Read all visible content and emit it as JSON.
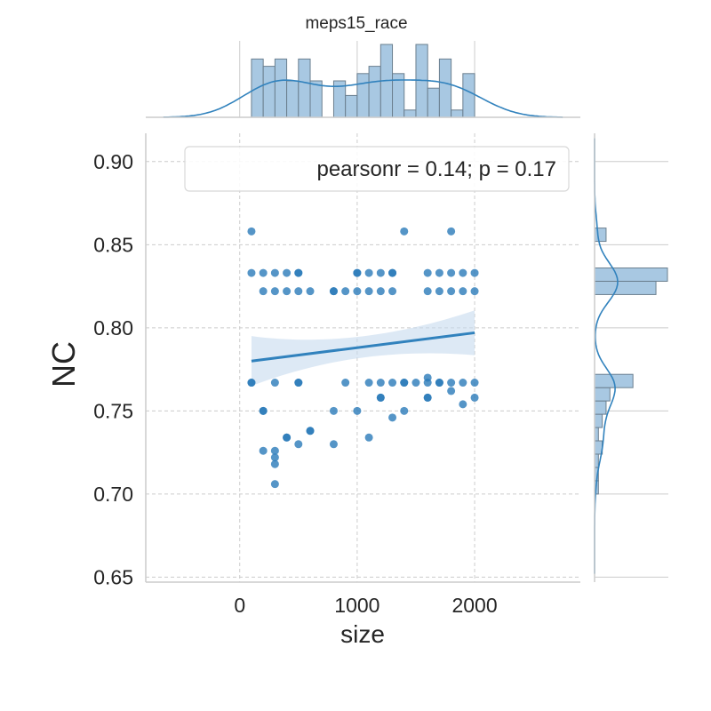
{
  "chart_data": {
    "type": "scatter",
    "title": "meps15_race",
    "xlabel": "size",
    "ylabel": "NC",
    "xlim": [
      -800,
      2900
    ],
    "ylim": [
      0.647,
      0.917
    ],
    "x_ticks": [
      0,
      1000,
      2000
    ],
    "x_tick_labels": [
      "0",
      "1000",
      "2000"
    ],
    "y_ticks": [
      0.65,
      0.7,
      0.75,
      0.8,
      0.85,
      0.9
    ],
    "y_tick_labels": [
      "0.65",
      "0.70",
      "0.75",
      "0.80",
      "0.85",
      "0.90"
    ],
    "grid": true,
    "legend_text": "pearsonr = 0.14; p = 0.17",
    "legend_position": "top-right",
    "colors": {
      "points": "#2a7ab9",
      "regression": "#3182bd",
      "ci_band": "#c6dbef",
      "hist_fill": "#a8c8e2",
      "hist_edge": "#6b7f8f",
      "kde": "#3182bd",
      "grid": "#cccccc"
    },
    "points": [
      [
        100,
        0.858
      ],
      [
        100,
        0.833
      ],
      [
        100,
        0.767
      ],
      [
        100,
        0.767
      ],
      [
        200,
        0.833
      ],
      [
        200,
        0.822
      ],
      [
        200,
        0.75
      ],
      [
        200,
        0.75
      ],
      [
        200,
        0.726
      ],
      [
        300,
        0.833
      ],
      [
        300,
        0.822
      ],
      [
        300,
        0.767
      ],
      [
        300,
        0.726
      ],
      [
        300,
        0.722
      ],
      [
        300,
        0.718
      ],
      [
        300,
        0.706
      ],
      [
        400,
        0.833
      ],
      [
        400,
        0.822
      ],
      [
        400,
        0.734
      ],
      [
        400,
        0.734
      ],
      [
        500,
        0.833
      ],
      [
        500,
        0.833
      ],
      [
        500,
        0.822
      ],
      [
        500,
        0.767
      ],
      [
        500,
        0.767
      ],
      [
        500,
        0.73
      ],
      [
        600,
        0.822
      ],
      [
        600,
        0.738
      ],
      [
        600,
        0.738
      ],
      [
        800,
        0.822
      ],
      [
        800,
        0.822
      ],
      [
        800,
        0.75
      ],
      [
        800,
        0.73
      ],
      [
        900,
        0.822
      ],
      [
        900,
        0.767
      ],
      [
        1000,
        0.833
      ],
      [
        1000,
        0.833
      ],
      [
        1000,
        0.822
      ],
      [
        1000,
        0.75
      ],
      [
        1100,
        0.833
      ],
      [
        1100,
        0.822
      ],
      [
        1100,
        0.767
      ],
      [
        1100,
        0.734
      ],
      [
        1200,
        0.833
      ],
      [
        1200,
        0.822
      ],
      [
        1200,
        0.767
      ],
      [
        1200,
        0.758
      ],
      [
        1200,
        0.758
      ],
      [
        1300,
        0.833
      ],
      [
        1300,
        0.833
      ],
      [
        1300,
        0.822
      ],
      [
        1300,
        0.767
      ],
      [
        1300,
        0.746
      ],
      [
        1400,
        0.858
      ],
      [
        1400,
        0.767
      ],
      [
        1400,
        0.767
      ],
      [
        1400,
        0.75
      ],
      [
        1500,
        0.767
      ],
      [
        1600,
        0.833
      ],
      [
        1600,
        0.822
      ],
      [
        1600,
        0.77
      ],
      [
        1600,
        0.767
      ],
      [
        1600,
        0.758
      ],
      [
        1600,
        0.758
      ],
      [
        1700,
        0.833
      ],
      [
        1700,
        0.822
      ],
      [
        1700,
        0.767
      ],
      [
        1700,
        0.767
      ],
      [
        1800,
        0.858
      ],
      [
        1800,
        0.833
      ],
      [
        1800,
        0.822
      ],
      [
        1800,
        0.767
      ],
      [
        1800,
        0.762
      ],
      [
        1900,
        0.833
      ],
      [
        1900,
        0.822
      ],
      [
        1900,
        0.767
      ],
      [
        1900,
        0.754
      ],
      [
        2000,
        0.833
      ],
      [
        2000,
        0.822
      ],
      [
        2000,
        0.767
      ],
      [
        2000,
        0.758
      ]
    ],
    "regression": {
      "x": [
        100,
        2000
      ],
      "y": [
        0.78,
        0.797
      ],
      "ci_lower": [
        0.765,
        0.784
      ],
      "ci_upper": [
        0.795,
        0.811
      ]
    },
    "x_histogram": {
      "bin_edges": [
        100,
        200,
        300,
        400,
        500,
        600,
        700,
        800,
        900,
        1000,
        1100,
        1200,
        1300,
        1400,
        1500,
        1600,
        1700,
        1800,
        1900,
        2000
      ],
      "counts": [
        8,
        7,
        8,
        5,
        8,
        5,
        0,
        5,
        3,
        6,
        7,
        10,
        6,
        1,
        10,
        4,
        8,
        1,
        6
      ]
    },
    "y_histogram": {
      "bin_edges": [
        0.7,
        0.708,
        0.716,
        0.724,
        0.732,
        0.74,
        0.748,
        0.756,
        0.764,
        0.772,
        0.78,
        0.788,
        0.796,
        0.804,
        0.812,
        0.82,
        0.828,
        0.836,
        0.844,
        0.852,
        0.86
      ],
      "counts": [
        1,
        1,
        1,
        2,
        1,
        2,
        3,
        4,
        10,
        0,
        0,
        0,
        0,
        0,
        0,
        16,
        19,
        0,
        0,
        3
      ]
    }
  }
}
